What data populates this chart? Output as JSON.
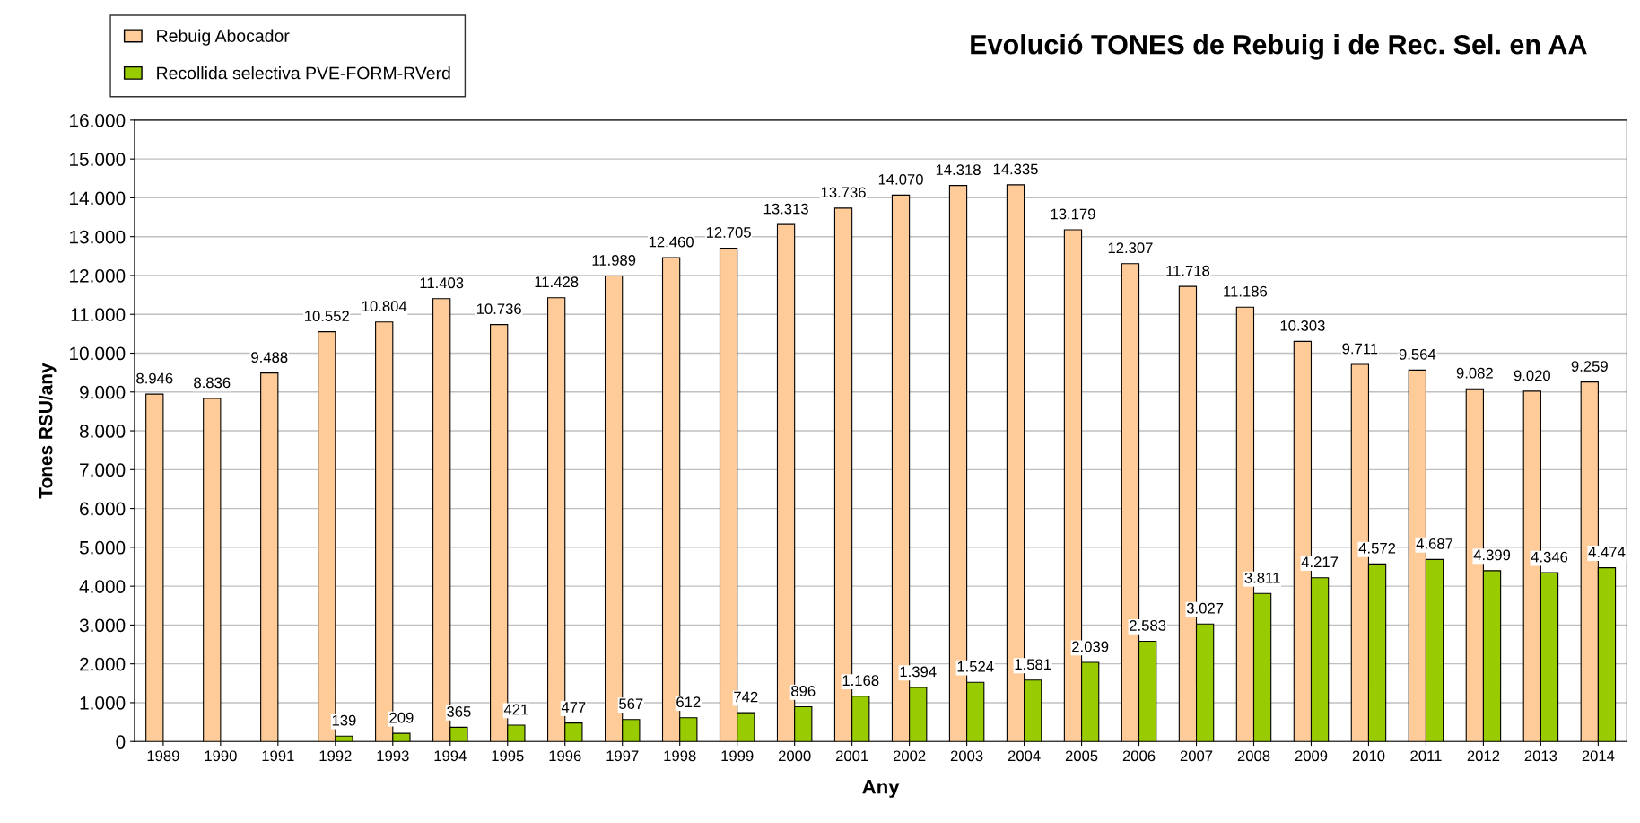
{
  "chart_data": {
    "type": "bar",
    "title": "Evolució TONES de Rebuig i de Rec. Sel. en AA",
    "xlabel": "Any",
    "ylabel": "Tones RSU/any",
    "categories": [
      "1989",
      "1990",
      "1991",
      "1992",
      "1993",
      "1994",
      "1995",
      "1996",
      "1997",
      "1998",
      "1999",
      "2000",
      "2001",
      "2002",
      "2003",
      "2004",
      "2005",
      "2006",
      "2007",
      "2008",
      "2009",
      "2010",
      "2011",
      "2012",
      "2013",
      "2014"
    ],
    "series": [
      {
        "name": "Rebuig Abocador",
        "color": "#ffcc99",
        "values": [
          8946,
          8836,
          9488,
          10552,
          10804,
          11403,
          10736,
          11428,
          11989,
          12460,
          12705,
          13313,
          13736,
          14070,
          14318,
          14335,
          13179,
          12307,
          11718,
          11186,
          10303,
          9711,
          9564,
          9082,
          9020,
          9259
        ],
        "value_labels": [
          "8.946",
          "8.836",
          "9.488",
          "10.552",
          "10.804",
          "11.403",
          "10.736",
          "11.428",
          "11.989",
          "12.460",
          "12.705",
          "13.313",
          "13.736",
          "14.070",
          "14.318",
          "14.335",
          "13.179",
          "12.307",
          "11.718",
          "11.186",
          "10.303",
          "9.711",
          "9.564",
          "9.082",
          "9.020",
          "9.259"
        ]
      },
      {
        "name": "Recollida selectiva PVE-FORM-RVerd",
        "color": "#99cc00",
        "values": [
          null,
          null,
          null,
          139,
          209,
          365,
          421,
          477,
          567,
          612,
          742,
          896,
          1168,
          1394,
          1524,
          1581,
          2039,
          2583,
          3027,
          3811,
          4217,
          4572,
          4687,
          4399,
          4346,
          4474
        ],
        "value_labels": [
          null,
          null,
          null,
          "139",
          "209",
          "365",
          "421",
          "477",
          "567",
          "612",
          "742",
          "896",
          "1.168",
          "1.394",
          "1.524",
          "1.581",
          "2.039",
          "2.583",
          "3.027",
          "3.811",
          "4.217",
          "4.572",
          "4.687",
          "4.399",
          "4.346",
          "4.474"
        ]
      }
    ],
    "ylim": [
      0,
      16000
    ],
    "yticks": [
      0,
      {
        "value": 1000,
        "label": "1.000"
      },
      {
        "value": 2000,
        "label": "2.000"
      },
      {
        "value": 3000,
        "label": "3.000"
      },
      {
        "value": 4000,
        "label": "4.000"
      },
      {
        "value": 5000,
        "label": "5.000"
      },
      {
        "value": 6000,
        "label": "6.000"
      },
      {
        "value": 7000,
        "label": "7.000"
      },
      {
        "value": 8000,
        "label": "8.000"
      },
      {
        "value": 9000,
        "label": "9.000"
      },
      {
        "value": 10000,
        "label": "10.000"
      },
      {
        "value": 11000,
        "label": "11.000"
      },
      {
        "value": 12000,
        "label": "12.000"
      },
      {
        "value": 13000,
        "label": "13.000"
      },
      {
        "value": 14000,
        "label": "14.000"
      },
      {
        "value": 15000,
        "label": "15.000"
      },
      {
        "value": 16000,
        "label": "16.000"
      }
    ],
    "grid": "y",
    "legend": "top left"
  }
}
